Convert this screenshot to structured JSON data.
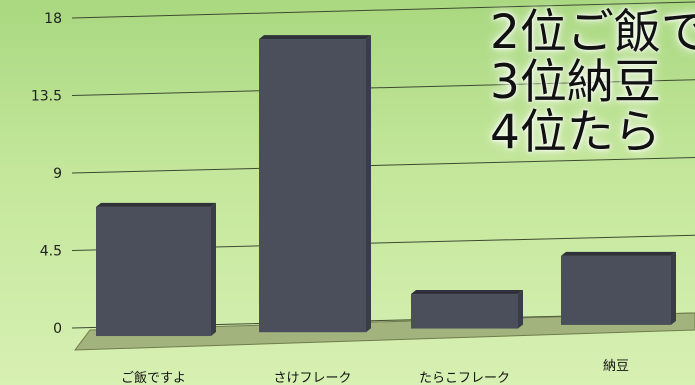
{
  "chart_data": {
    "type": "bar",
    "categories": [
      "ご飯ですよ",
      "さけフレーク",
      "たらこフレーク",
      "納豆"
    ],
    "values": [
      7.5,
      17,
      2,
      4
    ],
    "title": "",
    "xlabel": "",
    "ylabel": "",
    "ylim": [
      0,
      18
    ],
    "yticks": [
      "0",
      "4.5",
      "9",
      "13.5",
      "18"
    ],
    "grid": true,
    "bar_color": "#4b4f5c",
    "floor_color": "#9aa874"
  },
  "overlay_lines": [
    "2位ご飯で",
    "3位納豆",
    "4位たら"
  ]
}
